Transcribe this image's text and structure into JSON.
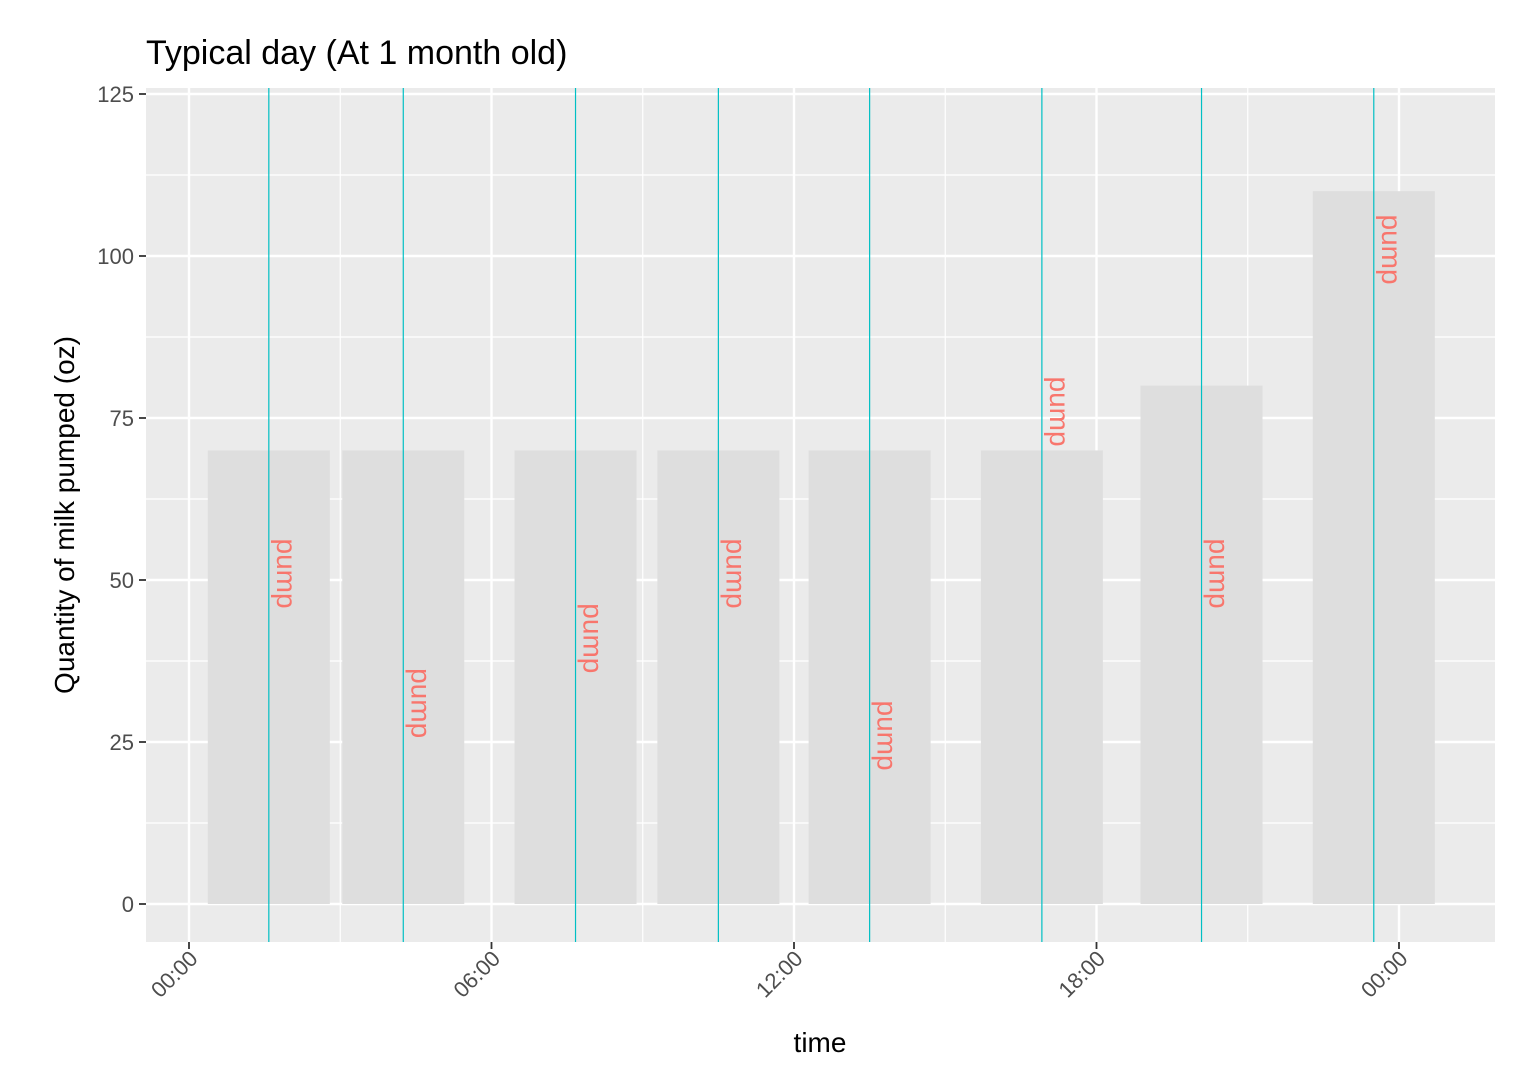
{
  "chart_data": {
    "type": "bar",
    "title": "Typical day (At 1 month old)",
    "xlabel": "time",
    "ylabel": "Quantity of milk pumped (oz)",
    "ylim": [
      -6,
      125
    ],
    "xlim": [
      "00:00",
      "00:00 (next day)"
    ],
    "x_ticks": [
      "00:00",
      "06:00",
      "12:00",
      "18:00",
      "00:00"
    ],
    "x_tick_hours": [
      0,
      6,
      12,
      18,
      24
    ],
    "y_ticks": [
      0,
      25,
      50,
      75,
      100,
      125
    ],
    "grid": true,
    "legend": "none",
    "bars": [
      {
        "time": "01:35",
        "quantity": 70
      },
      {
        "time": "04:15",
        "quantity": 70
      },
      {
        "time": "07:40",
        "quantity": 70
      },
      {
        "time": "10:30",
        "quantity": 70
      },
      {
        "time": "13:30",
        "quantity": 70
      },
      {
        "time": "16:55",
        "quantity": 70
      },
      {
        "time": "20:05",
        "quantity": 80
      },
      {
        "time": "23:30",
        "quantity": 110
      }
    ],
    "events": [
      {
        "time": "01:35",
        "label": "pump",
        "label_y": 51
      },
      {
        "time": "04:15",
        "label": "pump",
        "label_y": 31
      },
      {
        "time": "07:40",
        "label": "pump",
        "label_y": 41
      },
      {
        "time": "10:30",
        "label": "pump",
        "label_y": 51
      },
      {
        "time": "13:30",
        "label": "pump",
        "label_y": 26
      },
      {
        "time": "16:55",
        "label": "pump",
        "label_y": 76
      },
      {
        "time": "20:05",
        "label": "pump",
        "label_y": 51
      },
      {
        "time": "23:30",
        "label": "pump",
        "label_y": 101
      }
    ],
    "colors": {
      "panel": "#ebebeb",
      "grid": "#ffffff",
      "bar": "#dedede",
      "event_line": "#00BFC4",
      "event_label": "#F8766D"
    }
  }
}
